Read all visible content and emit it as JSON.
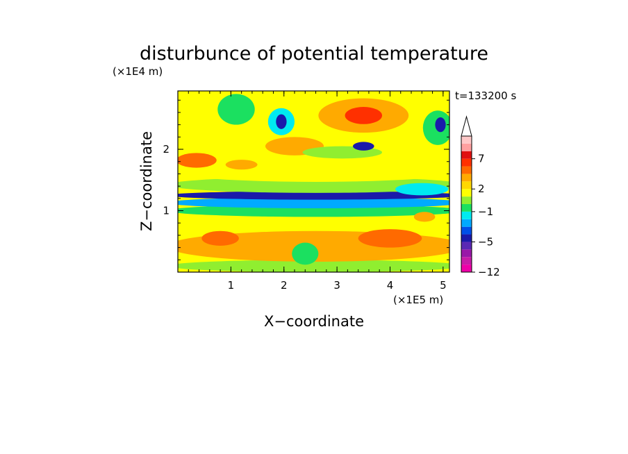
{
  "chart_data": {
    "type": "heatmap",
    "title": "disturbunce of potential temperature",
    "y_unit": "(×1E4 m)",
    "x_unit": "(×1E5 m)",
    "xlabel": "X−coordinate",
    "ylabel": "Z−coordinate",
    "time_label": "t=133200 s",
    "xlim": [
      0,
      5.12
    ],
    "ylim": [
      0,
      2.95
    ],
    "x_ticks": [
      1,
      2,
      3,
      4,
      5
    ],
    "x_tick_labels": [
      "1",
      "2",
      "3",
      "4",
      "5"
    ],
    "y_ticks": [
      1,
      2
    ],
    "y_tick_labels": [
      "1",
      "2"
    ],
    "colorbar": {
      "levels": [
        -12,
        -10,
        -8,
        -6,
        -5,
        -4,
        -3,
        -2,
        -1,
        0,
        1,
        2,
        3,
        4,
        5,
        7,
        9,
        11
      ],
      "colors": [
        "#ee00a8",
        "#c81ca8",
        "#9918a8",
        "#5a28b4",
        "#1a1aaa",
        "#0050e8",
        "#00aaff",
        "#00eaf0",
        "#1be060",
        "#90ee30",
        "#ffff00",
        "#ffd800",
        "#ffaa00",
        "#ff6a00",
        "#ff3000",
        "#e01010",
        "#ffa0a0",
        "#ffc8c8"
      ],
      "tick_values": [
        -12,
        -5,
        -1,
        2,
        7
      ],
      "tick_labels": [
        "−12",
        "−5",
        "−1",
        "2",
        "7"
      ],
      "extend": "max"
    },
    "field": {
      "background_level": 1,
      "features": [
        {
          "x": 2.6,
          "z": 0.1,
          "rx": 2.8,
          "rz": 0.1,
          "level": 0
        },
        {
          "x": 2.6,
          "z": 0.42,
          "rx": 2.8,
          "rz": 0.25,
          "level": 3
        },
        {
          "x": 2.6,
          "z": 0.8,
          "rx": 2.8,
          "rz": 0.1,
          "level": 1
        },
        {
          "x": 2.6,
          "z": 1.0,
          "rx": 2.8,
          "rz": 0.1,
          "level": -1
        },
        {
          "x": 2.6,
          "z": 1.13,
          "rx": 2.8,
          "rz": 0.09,
          "level": -3
        },
        {
          "x": 2.6,
          "z": 1.25,
          "rx": 2.8,
          "rz": 0.07,
          "level": -5
        },
        {
          "x": 2.6,
          "z": 1.42,
          "rx": 2.8,
          "rz": 0.13,
          "level": 0
        },
        {
          "x": 2.6,
          "z": 1.65,
          "rx": 2.8,
          "rz": 0.18,
          "level": 1
        },
        {
          "x": 0.35,
          "z": 1.82,
          "rx": 0.38,
          "rz": 0.12,
          "level": 4
        },
        {
          "x": 1.2,
          "z": 1.75,
          "rx": 0.3,
          "rz": 0.08,
          "level": 3
        },
        {
          "x": 2.2,
          "z": 2.05,
          "rx": 0.55,
          "rz": 0.15,
          "level": 3
        },
        {
          "x": 3.1,
          "z": 1.95,
          "rx": 0.75,
          "rz": 0.1,
          "level": 0
        },
        {
          "x": 3.5,
          "z": 2.55,
          "rx": 0.85,
          "rz": 0.28,
          "level": 3
        },
        {
          "x": 3.5,
          "z": 2.55,
          "rx": 0.35,
          "rz": 0.14,
          "level": 5
        },
        {
          "x": 1.95,
          "z": 2.45,
          "rx": 0.25,
          "rz": 0.22,
          "level": -2
        },
        {
          "x": 1.95,
          "z": 2.45,
          "rx": 0.1,
          "rz": 0.12,
          "level": -5
        },
        {
          "x": 4.9,
          "z": 2.35,
          "rx": 0.28,
          "rz": 0.28,
          "level": -1
        },
        {
          "x": 4.95,
          "z": 2.4,
          "rx": 0.1,
          "rz": 0.12,
          "level": -5
        },
        {
          "x": 0.5,
          "z": 2.75,
          "rx": 0.5,
          "rz": 0.2,
          "level": 1
        },
        {
          "x": 1.1,
          "z": 2.65,
          "rx": 0.35,
          "rz": 0.25,
          "level": -1
        },
        {
          "x": 3.5,
          "z": 2.05,
          "rx": 0.2,
          "rz": 0.07,
          "level": -5
        },
        {
          "x": 2.4,
          "z": 0.3,
          "rx": 0.25,
          "rz": 0.18,
          "level": -1
        },
        {
          "x": 4.0,
          "z": 0.55,
          "rx": 0.6,
          "rz": 0.15,
          "level": 4
        },
        {
          "x": 0.8,
          "z": 0.55,
          "rx": 0.35,
          "rz": 0.12,
          "level": 4
        },
        {
          "x": 4.65,
          "z": 0.9,
          "rx": 0.2,
          "rz": 0.08,
          "level": 3
        },
        {
          "x": 4.6,
          "z": 1.35,
          "rx": 0.5,
          "rz": 0.1,
          "level": -2
        },
        {
          "x": 0.6,
          "z": 2.25,
          "rx": 0.3,
          "rz": 0.12,
          "level": 1
        }
      ]
    }
  }
}
